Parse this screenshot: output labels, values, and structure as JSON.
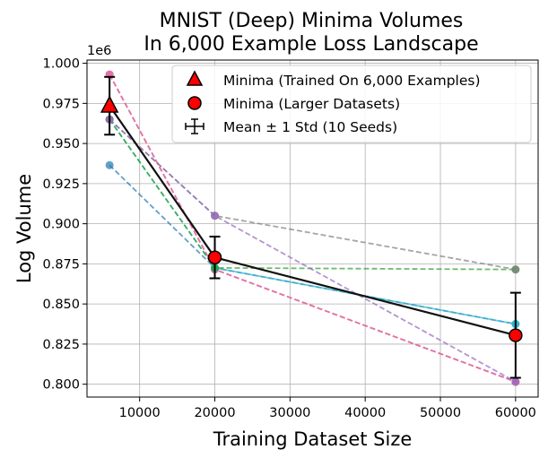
{
  "chart_data": {
    "type": "line",
    "title": [
      "MNIST (Deep) Minima Volumes",
      "In 6,000 Example Loss Landscape"
    ],
    "xlabel": "Training Dataset Size",
    "ylabel": "Log Volume",
    "y_offset_label": "1e6",
    "xlim": [
      3000,
      63000
    ],
    "ylim": [
      792000,
      1002000
    ],
    "x_ticks": [
      10000,
      20000,
      30000,
      40000,
      50000,
      60000
    ],
    "y_ticks": [
      800000,
      825000,
      850000,
      875000,
      900000,
      925000,
      950000,
      975000,
      1000000
    ],
    "y_tick_labels": [
      "0.800",
      "0.825",
      "0.850",
      "0.875",
      "0.900",
      "0.925",
      "0.950",
      "0.975",
      "1.000"
    ],
    "grid": true,
    "legend_position": "top-right",
    "legend": [
      {
        "label": "Minima (Trained On 6,000 Examples)",
        "marker": "triangle"
      },
      {
        "label": "Minima (Larger Datasets)",
        "marker": "circle"
      },
      {
        "label": "Mean ± 1 Std (10 Seeds)",
        "marker": "errorbar"
      }
    ],
    "x": [
      6000,
      20000,
      60000
    ],
    "seeds": [
      {
        "color": "#d62728",
        "values": [
          993000,
          871500,
          801500
        ]
      },
      {
        "color": "#e377c2",
        "values": [
          993000,
          871500,
          801500
        ]
      },
      {
        "color": "#1f77b4",
        "values": [
          936500,
          872500,
          837500
        ]
      },
      {
        "color": "#17becf",
        "values": [
          965000,
          872500,
          837500
        ]
      },
      {
        "color": "#2ca02c",
        "values": [
          965000,
          872500,
          871500
        ]
      },
      {
        "color": "#7f7f7f",
        "values": [
          965000,
          905000,
          871500
        ]
      },
      {
        "color": "#9467bd",
        "values": [
          965000,
          905000,
          801500
        ]
      }
    ],
    "mean": {
      "values": [
        973500,
        879000,
        830500
      ],
      "std": [
        18000,
        13000,
        26500
      ]
    }
  }
}
